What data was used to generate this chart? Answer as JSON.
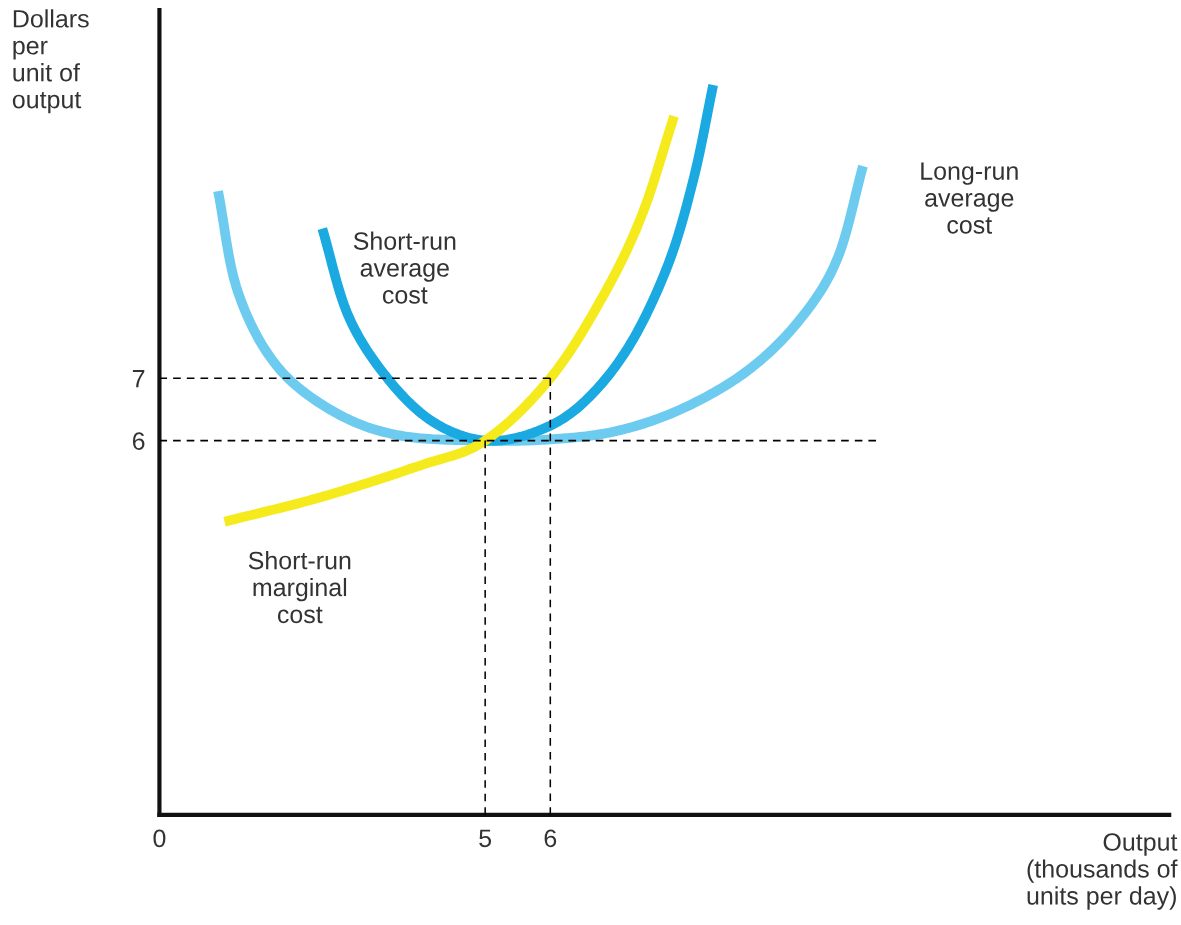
{
  "chart_data": {
    "type": "line",
    "xlabel": "Output\n(thousands of\nunits per day)",
    "ylabel": "Dollars\nper\nunit of\noutput",
    "xlim": [
      0,
      15.5
    ],
    "ylim": [
      0,
      12.9
    ],
    "xticks": [
      0,
      5,
      6
    ],
    "yticks": [
      6,
      7
    ],
    "grid": false,
    "legend": false,
    "marker": "none",
    "series": [
      {
        "color": "#000000",
        "line_style": "dashed",
        "x": [
          0,
          6
        ],
        "values": [
          7,
          7
        ]
      },
      {
        "color": "#000000",
        "line_style": "dashed",
        "x": [
          0,
          11
        ],
        "values": [
          6,
          6
        ]
      },
      {
        "color": "#000000",
        "line_style": "dashed",
        "x": [
          5,
          5
        ],
        "values": [
          0,
          6
        ]
      },
      {
        "color": "#000000",
        "line_style": "dashed",
        "x": [
          6,
          6
        ],
        "values": [
          0,
          7
        ]
      },
      {
        "color": "#6dcbef",
        "line_style": "solid",
        "x": [
          0.9,
          1.2,
          1.8,
          2.7,
          3.7,
          5,
          6,
          7,
          8,
          9,
          9.8,
          10.4,
          10.8
        ],
        "values": [
          10.0,
          8.4,
          7.2,
          6.45,
          6.08,
          6,
          6.02,
          6.15,
          6.5,
          7.1,
          7.9,
          8.9,
          10.4
        ]
      },
      {
        "color": "#1aa9e1",
        "line_style": "solid",
        "x": [
          2.5,
          2.9,
          3.5,
          4.2,
          5,
          5.8,
          6.5,
          7.2,
          7.8,
          8.2,
          8.5
        ],
        "values": [
          9.4,
          8.0,
          7.0,
          6.3,
          6,
          6.15,
          6.6,
          7.5,
          8.8,
          10.2,
          11.7
        ]
      },
      {
        "color": "#f5ea1c",
        "line_style": "solid",
        "x": [
          1.0,
          2.5,
          4,
          5,
          6,
          6.8,
          7.4,
          7.9
        ],
        "values": [
          4.7,
          5.1,
          5.6,
          6,
          7,
          8.3,
          9.6,
          11.2
        ]
      }
    ],
    "annotations": [
      "Short-run\naverage\ncost",
      "Long-run\naverage\ncost",
      "Short-run\nmarginal\ncost"
    ]
  }
}
